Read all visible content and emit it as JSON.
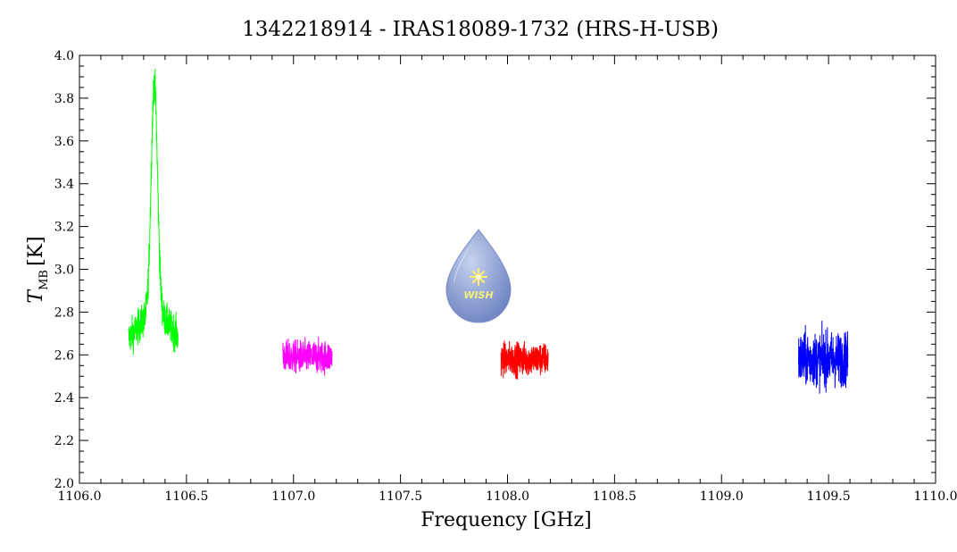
{
  "chart_data": {
    "type": "line",
    "title": "1342218914 - IRAS18089-1732 (HRS-H-USB)",
    "xlabel": "Frequency [GHz]",
    "ylabel_main": "T",
    "ylabel_sub": "MB",
    "ylabel_unit": "[K]",
    "xlim": [
      1106.0,
      1110.0
    ],
    "ylim": [
      2.0,
      4.0
    ],
    "x_ticks": [
      "1106.0",
      "1106.5",
      "1107.0",
      "1107.5",
      "1108.0",
      "1108.5",
      "1109.0",
      "1109.5",
      "1110.0"
    ],
    "y_ticks": [
      "2.0",
      "2.2",
      "2.4",
      "2.6",
      "2.8",
      "3.0",
      "3.2",
      "3.4",
      "3.6",
      "3.8",
      "4.0"
    ],
    "grid": false,
    "logo_text": "WISH",
    "series": [
      {
        "color": "#00ff00",
        "x_range": [
          1106.23,
          1106.46
        ],
        "baseline": 2.64,
        "noise_range": [
          2.43,
          2.94
        ],
        "peak": {
          "x": 1106.35,
          "y": 3.82,
          "width": 0.015
        }
      },
      {
        "color": "#ff00ff",
        "x_range": [
          1106.95,
          1107.18
        ],
        "baseline": 2.59,
        "noise_range": [
          2.33,
          2.88
        ]
      },
      {
        "color": "#ff0000",
        "x_range": [
          1107.97,
          1108.19
        ],
        "baseline": 2.58,
        "noise_range": [
          2.3,
          2.87
        ]
      },
      {
        "color": "#0000ff",
        "x_range": [
          1109.36,
          1109.59
        ],
        "baseline": 2.58,
        "noise_range": [
          2.11,
          2.95
        ]
      }
    ]
  }
}
